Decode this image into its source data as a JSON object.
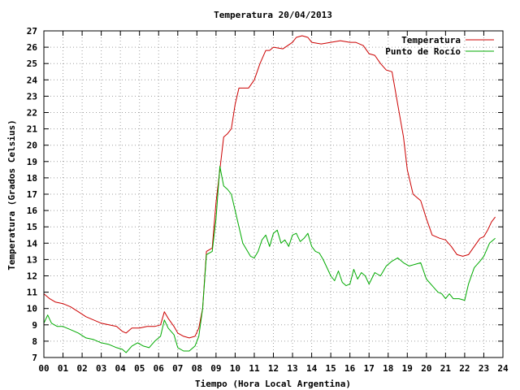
{
  "chart_data": {
    "type": "line",
    "title": "Temperatura 20/04/2013",
    "xlabel": "Tiempo (Hora Local Argentina)",
    "ylabel": "Temperatura (Grados Celsius)",
    "xlim": [
      0,
      24
    ],
    "ylim": [
      7,
      27
    ],
    "x_ticks": [
      "00",
      "01",
      "02",
      "03",
      "04",
      "05",
      "06",
      "07",
      "08",
      "09",
      "10",
      "11",
      "12",
      "13",
      "14",
      "15",
      "16",
      "17",
      "18",
      "19",
      "20",
      "21",
      "22",
      "23",
      "24"
    ],
    "y_ticks": [
      7,
      8,
      9,
      10,
      11,
      12,
      13,
      14,
      15,
      16,
      17,
      18,
      19,
      20,
      21,
      22,
      23,
      24,
      25,
      26,
      27
    ],
    "grid": true,
    "legend_position": "top-right",
    "series": [
      {
        "name": "Temperatura",
        "color": "#cc0000",
        "x": [
          0,
          0.3,
          0.6,
          1.0,
          1.4,
          1.8,
          2.2,
          2.6,
          3.0,
          3.4,
          3.8,
          4.1,
          4.3,
          4.6,
          5.0,
          5.4,
          5.8,
          6.1,
          6.3,
          6.5,
          6.8,
          7.0,
          7.3,
          7.6,
          7.9,
          8.1,
          8.3,
          8.5,
          8.8,
          9.0,
          9.2,
          9.4,
          9.6,
          9.8,
          10.0,
          10.2,
          10.4,
          10.7,
          11.0,
          11.3,
          11.6,
          11.8,
          12.0,
          12.5,
          13.0,
          13.2,
          13.5,
          13.8,
          14.0,
          14.5,
          15.0,
          15.5,
          16.0,
          16.3,
          16.7,
          17.0,
          17.3,
          17.6,
          17.9,
          18.2,
          18.5,
          18.8,
          19.0,
          19.3,
          19.7,
          20.0,
          20.3,
          20.7,
          21.0,
          21.3,
          21.6,
          21.9,
          22.2,
          22.5,
          22.8,
          23.0,
          23.2,
          23.4,
          23.6
        ],
        "y": [
          10.9,
          10.6,
          10.4,
          10.3,
          10.1,
          9.8,
          9.5,
          9.3,
          9.1,
          9.0,
          8.9,
          8.6,
          8.5,
          8.8,
          8.8,
          8.9,
          8.9,
          9.0,
          9.8,
          9.4,
          8.9,
          8.5,
          8.3,
          8.2,
          8.3,
          8.8,
          10.0,
          13.5,
          13.7,
          16.5,
          18.5,
          20.5,
          20.7,
          21.0,
          22.5,
          23.5,
          23.5,
          23.5,
          24.0,
          25.0,
          25.8,
          25.8,
          26.0,
          25.9,
          26.3,
          26.6,
          26.7,
          26.6,
          26.3,
          26.2,
          26.3,
          26.4,
          26.3,
          26.3,
          26.1,
          25.6,
          25.5,
          25.0,
          24.6,
          24.5,
          22.5,
          20.5,
          18.5,
          17.0,
          16.6,
          15.5,
          14.5,
          14.3,
          14.2,
          13.8,
          13.3,
          13.2,
          13.3,
          13.8,
          14.3,
          14.4,
          14.8,
          15.3,
          15.6
        ]
      },
      {
        "name": "Punto de Rocío",
        "color": "#00aa00",
        "x": [
          0,
          0.2,
          0.4,
          0.7,
          1.0,
          1.4,
          1.8,
          2.2,
          2.6,
          3.0,
          3.4,
          3.8,
          4.1,
          4.3,
          4.6,
          4.9,
          5.2,
          5.5,
          5.8,
          6.1,
          6.3,
          6.5,
          6.8,
          7.0,
          7.3,
          7.6,
          7.9,
          8.1,
          8.3,
          8.5,
          8.8,
          9.0,
          9.2,
          9.4,
          9.6,
          9.8,
          10.0,
          10.2,
          10.4,
          10.6,
          10.8,
          11.0,
          11.2,
          11.4,
          11.6,
          11.8,
          12.0,
          12.2,
          12.4,
          12.6,
          12.8,
          13.0,
          13.2,
          13.4,
          13.6,
          13.8,
          14.0,
          14.2,
          14.4,
          14.6,
          14.8,
          15.0,
          15.2,
          15.4,
          15.6,
          15.8,
          16.0,
          16.2,
          16.4,
          16.6,
          16.8,
          17.0,
          17.3,
          17.6,
          17.9,
          18.2,
          18.5,
          18.8,
          19.1,
          19.4,
          19.7,
          20.0,
          20.3,
          20.6,
          20.8,
          21.0,
          21.2,
          21.4,
          21.7,
          22.0,
          22.2,
          22.5,
          22.8,
          23.0,
          23.3,
          23.6
        ],
        "y": [
          9.1,
          9.6,
          9.1,
          8.9,
          8.9,
          8.7,
          8.5,
          8.2,
          8.1,
          7.9,
          7.8,
          7.6,
          7.5,
          7.3,
          7.7,
          7.9,
          7.7,
          7.6,
          8.0,
          8.3,
          9.3,
          8.8,
          8.4,
          7.6,
          7.4,
          7.4,
          7.7,
          8.3,
          10.0,
          13.3,
          13.5,
          15.5,
          18.7,
          17.5,
          17.3,
          17.0,
          16.0,
          15.0,
          14.0,
          13.6,
          13.2,
          13.1,
          13.5,
          14.2,
          14.5,
          13.8,
          14.6,
          14.8,
          14.0,
          14.2,
          13.8,
          14.5,
          14.6,
          14.1,
          14.3,
          14.6,
          13.8,
          13.5,
          13.4,
          13.0,
          12.5,
          12.0,
          11.7,
          12.3,
          11.6,
          11.4,
          11.5,
          12.4,
          11.8,
          12.2,
          12.0,
          11.5,
          12.2,
          12.0,
          12.6,
          12.9,
          13.1,
          12.8,
          12.6,
          12.7,
          12.8,
          11.8,
          11.4,
          11.0,
          10.9,
          10.6,
          10.9,
          10.6,
          10.6,
          10.5,
          11.5,
          12.5,
          12.9,
          13.2,
          14.0,
          14.3
        ]
      }
    ]
  }
}
